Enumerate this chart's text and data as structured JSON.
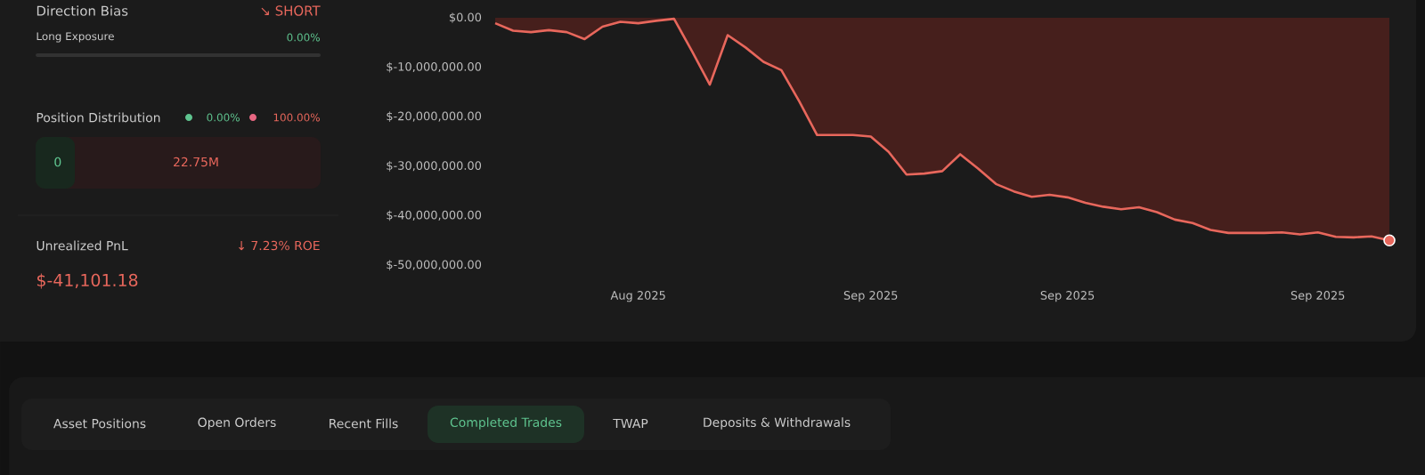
{
  "chart_data": {
    "type": "area",
    "categories": [
      null,
      null,
      null,
      null,
      null,
      null,
      null,
      null,
      "Aug 2025",
      null,
      null,
      null,
      null,
      null,
      null,
      null,
      null,
      null,
      null,
      null,
      null,
      "Sep 2025",
      null,
      null,
      null,
      null,
      null,
      null,
      null,
      null,
      null,
      null,
      "Sep 2025",
      null,
      null,
      null,
      null,
      null,
      null,
      null,
      null,
      null,
      null,
      null,
      null,
      null,
      "Sep 2025",
      null,
      null,
      null,
      null
    ],
    "series": [
      {
        "color": "#e8675c",
        "values": [
          -1100000,
          -2600000,
          -2900000,
          -2500000,
          -2900000,
          -4300000,
          -1800000,
          -800000,
          -1100000,
          -600000,
          -200000,
          -6700000,
          -13500000,
          -3500000,
          -6000000,
          -8900000,
          -10600000,
          -16900000,
          -23700000,
          -23700000,
          -23700000,
          -24000000,
          -27100000,
          -31700000,
          -31500000,
          -31000000,
          -27600000,
          -30500000,
          -33600000,
          -35100000,
          -36200000,
          -35800000,
          -36300000,
          -37400000,
          -38200000,
          -38700000,
          -38300000,
          -39300000,
          -40800000,
          -41500000,
          -42900000,
          -43500000,
          -43500000,
          -43500000,
          -43400000,
          -43800000,
          -43400000,
          -44300000,
          -44400000,
          -44200000,
          -45000000
        ]
      },
      {
        "type": "scatter",
        "color": "#e8675c",
        "marker": "circle",
        "values": [
          null,
          null,
          null,
          null,
          null,
          null,
          null,
          null,
          null,
          null,
          null,
          null,
          null,
          null,
          null,
          null,
          null,
          null,
          null,
          null,
          null,
          null,
          null,
          null,
          null,
          null,
          null,
          null,
          null,
          null,
          null,
          null,
          null,
          null,
          null,
          null,
          null,
          null,
          null,
          null,
          null,
          null,
          null,
          null,
          null,
          null,
          null,
          null,
          null,
          null,
          -45000000
        ]
      }
    ],
    "ylim": [
      -50000000,
      0
    ],
    "yticks": [
      {
        "value": 0,
        "label": "$0.00"
      },
      {
        "value": -10000000,
        "label": "$-10,000,000.00"
      },
      {
        "value": -20000000,
        "label": "$-20,000,000.00"
      },
      {
        "value": -30000000,
        "label": "$-30,000,000.00"
      },
      {
        "value": -40000000,
        "label": "$-40,000,000.00"
      },
      {
        "value": -50000000,
        "label": "$-50,000,000.00"
      }
    ],
    "annotations": [
      "Direction Bias",
      "↘ SHORT",
      "Long Exposure",
      "0.00%",
      "Position Distribution",
      "0.00%",
      "100.00%",
      "0",
      "22.75M",
      "Unrealized PnL",
      "↓ 7.23% ROE",
      "$-41,101.18",
      "Asset Positions",
      "Open Orders",
      "Recent Fills",
      "Completed Trades",
      "TWAP",
      "Deposits & Withdrawals"
    ]
  }
}
